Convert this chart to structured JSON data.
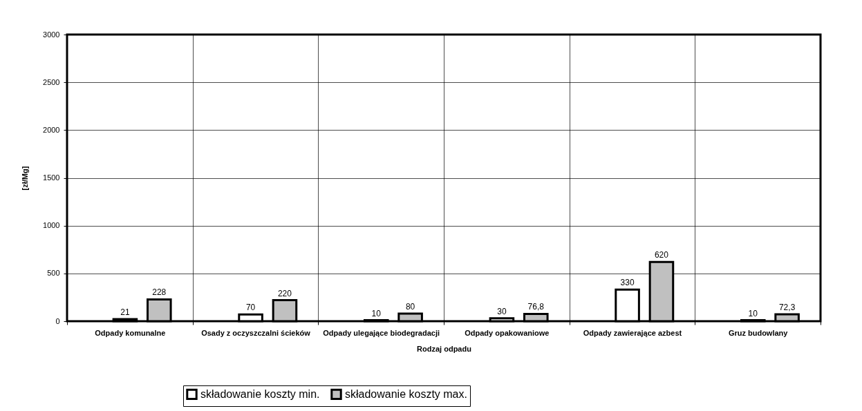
{
  "chart_data": {
    "type": "bar",
    "xlabel": "Rodzaj odpadu",
    "ylabel": "[zł/Mg]",
    "categories": [
      "Odpady komunalne",
      "Osady z oczyszczalni ścieków",
      "Odpady ulegające biodegradacji",
      "Odpady opakowaniowe",
      "Odpady zawierające azbest",
      "Gruz budowlany"
    ],
    "series": [
      {
        "name": "składowanie koszty min.",
        "color": "#ffffff",
        "values": [
          21,
          70,
          10,
          30,
          330,
          10
        ],
        "value_labels": [
          "21",
          "70",
          "10",
          "30",
          "330",
          "10"
        ]
      },
      {
        "name": "składowanie koszty max.",
        "color": "#c0c0c0",
        "values": [
          228,
          220,
          80,
          76.8,
          620,
          72.3
        ],
        "value_labels": [
          "228",
          "220",
          "80",
          "76,8",
          "620",
          "72,3"
        ]
      }
    ],
    "ylim": [
      0,
      3000
    ],
    "yticks": [
      0,
      500,
      1000,
      1500,
      2000,
      2500,
      3000
    ],
    "grid": true,
    "legend": "bottom"
  }
}
